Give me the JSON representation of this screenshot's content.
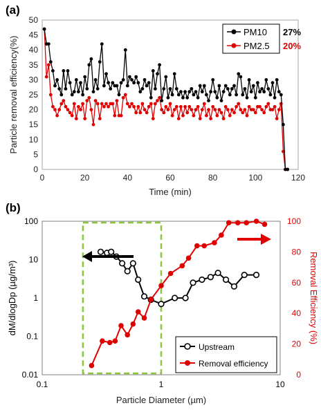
{
  "chart_data": [
    {
      "type": "line",
      "panel_label": "(a)",
      "title": "",
      "xlabel": "Time (min)",
      "ylabel": "Particle removal efficiency(%)",
      "xlim": [
        0,
        120
      ],
      "ylim": [
        0,
        50
      ],
      "xticks": [
        0,
        20,
        40,
        60,
        80,
        100,
        120
      ],
      "yticks": [
        0,
        5,
        10,
        15,
        20,
        25,
        30,
        35,
        40,
        45,
        50
      ],
      "legend_position": "top-right",
      "series": [
        {
          "name": "PM10",
          "color": "#000000",
          "summary": "27%",
          "x": [
            1,
            2,
            3,
            4,
            5,
            6,
            7,
            8,
            9,
            10,
            11,
            12,
            13,
            14,
            15,
            16,
            17,
            18,
            19,
            20,
            21,
            22,
            23,
            24,
            25,
            26,
            27,
            28,
            29,
            30,
            31,
            32,
            33,
            34,
            35,
            36,
            37,
            38,
            39,
            40,
            41,
            42,
            43,
            44,
            45,
            46,
            47,
            48,
            49,
            50,
            51,
            52,
            53,
            54,
            55,
            56,
            57,
            58,
            59,
            60,
            61,
            62,
            63,
            64,
            65,
            66,
            67,
            68,
            69,
            70,
            71,
            72,
            73,
            74,
            75,
            76,
            77,
            78,
            79,
            80,
            81,
            82,
            83,
            84,
            85,
            86,
            87,
            88,
            89,
            90,
            91,
            92,
            93,
            94,
            95,
            96,
            97,
            98,
            99,
            100,
            101,
            102,
            103,
            104,
            105,
            106,
            107,
            108,
            109,
            110,
            111,
            112,
            113,
            114,
            115
          ],
          "y": [
            47,
            42,
            42,
            36,
            33,
            28,
            30,
            27,
            25,
            33,
            27,
            33,
            29,
            25,
            26,
            30,
            26,
            29,
            25,
            31,
            27,
            35,
            37,
            26,
            30,
            27,
            36,
            42,
            28,
            32,
            29,
            27,
            29,
            28,
            28,
            25,
            29,
            30,
            40,
            28,
            31,
            30,
            29,
            31,
            29,
            26,
            27,
            30,
            28,
            29,
            24,
            33,
            27,
            32,
            35,
            23,
            27,
            31,
            24,
            27,
            25,
            32,
            27,
            25,
            26,
            24,
            26,
            24,
            26,
            27,
            25,
            26,
            24,
            28,
            26,
            28,
            25,
            23,
            26,
            30,
            26,
            24,
            28,
            23,
            26,
            28,
            27,
            25,
            27,
            28,
            25,
            32,
            31,
            25,
            27,
            24,
            30,
            26,
            28,
            24,
            29,
            26,
            27,
            26,
            30,
            27,
            25,
            29,
            24,
            30,
            26,
            25,
            15,
            0,
            0
          ]
        },
        {
          "name": "PM2.5",
          "color": "#e00000",
          "summary": "20%",
          "x": [
            1,
            2,
            3,
            4,
            5,
            6,
            7,
            8,
            9,
            10,
            11,
            12,
            13,
            14,
            15,
            16,
            17,
            18,
            19,
            20,
            21,
            22,
            23,
            24,
            25,
            26,
            27,
            28,
            29,
            30,
            31,
            32,
            33,
            34,
            35,
            36,
            37,
            38,
            39,
            40,
            41,
            42,
            43,
            44,
            45,
            46,
            47,
            48,
            49,
            50,
            51,
            52,
            53,
            54,
            55,
            56,
            57,
            58,
            59,
            60,
            61,
            62,
            63,
            64,
            65,
            66,
            67,
            68,
            69,
            70,
            71,
            72,
            73,
            74,
            75,
            76,
            77,
            78,
            79,
            80,
            81,
            82,
            83,
            84,
            85,
            86,
            87,
            88,
            89,
            90,
            91,
            92,
            93,
            94,
            95,
            96,
            97,
            98,
            99,
            100,
            101,
            102,
            103,
            104,
            105,
            106,
            107,
            108,
            109,
            110,
            111,
            112,
            113,
            114,
            115
          ],
          "y": [
            47,
            31,
            35,
            25,
            21,
            20,
            18,
            20,
            22,
            23,
            21,
            20,
            19,
            18,
            22,
            17,
            21,
            20,
            22,
            17,
            23,
            24,
            20,
            15,
            23,
            22,
            17,
            22,
            21,
            22,
            21,
            22,
            22,
            18,
            23,
            18,
            18,
            24,
            25,
            22,
            21,
            22,
            21,
            19,
            21,
            19,
            22,
            20,
            19,
            21,
            22,
            17,
            22,
            23,
            24,
            20,
            19,
            21,
            20,
            22,
            18,
            20,
            21,
            17,
            21,
            18,
            21,
            19,
            21,
            20,
            18,
            20,
            21,
            17,
            20,
            22,
            18,
            20,
            17,
            21,
            20,
            18,
            20,
            19,
            17,
            21,
            20,
            18,
            20,
            19,
            21,
            22,
            20,
            19,
            20,
            18,
            21,
            20,
            20,
            19,
            21,
            21,
            20,
            19,
            21,
            22,
            20,
            20,
            21,
            17,
            20,
            22,
            6,
            0,
            0
          ]
        }
      ]
    },
    {
      "type": "line",
      "panel_label": "(b)",
      "title": "",
      "xlabel": "Particle Diameter (µm)",
      "ylabel_left": "dM/dlogDp (µg/m³)",
      "ylabel_right": "Removal Efficiency (%)",
      "xscale": "log",
      "yscale_left": "log",
      "xlim": [
        0.1,
        10
      ],
      "ylim_left": [
        0.01,
        100
      ],
      "ylim_right": [
        0,
        100
      ],
      "xtick_labels": [
        "0.1",
        "1",
        "10"
      ],
      "ytick_labels_left": [
        "0.01",
        "0.1",
        "1",
        "10",
        "100"
      ],
      "ytick_labels_right": [
        "0",
        "20",
        "40",
        "60",
        "80",
        "100"
      ],
      "legend_position": "bottom-right",
      "highlight_region_x": [
        0.22,
        1.0
      ],
      "series": [
        {
          "name": "Upstream",
          "axis": "left",
          "color": "#000000",
          "marker": "hollow-circle",
          "x": [
            0.31,
            0.35,
            0.38,
            0.42,
            0.47,
            0.52,
            0.58,
            0.64,
            0.72,
            0.82,
            1.0,
            1.3,
            1.6,
            1.85,
            2.2,
            2.6,
            3.0,
            3.5,
            4.1,
            5.0,
            6.3
          ],
          "y": [
            16,
            15,
            16,
            12,
            8,
            5,
            8,
            3,
            1.1,
            0.9,
            0.7,
            1.0,
            1.0,
            2.5,
            3.0,
            3.5,
            4.5,
            3.0,
            2.0,
            4.0,
            4.0
          ]
        },
        {
          "name": "Removal efficiency",
          "axis": "right",
          "color": "#e00000",
          "marker": "filled-circle",
          "x": [
            0.26,
            0.32,
            0.37,
            0.41,
            0.46,
            0.52,
            0.58,
            0.64,
            0.72,
            0.82,
            1.0,
            1.2,
            1.5,
            1.7,
            2.0,
            2.3,
            2.8,
            3.2,
            3.7,
            4.4,
            5.2,
            6.3,
            7.4
          ],
          "y": [
            6,
            22,
            21,
            22,
            32,
            26,
            33,
            41,
            37,
            49,
            58,
            66,
            71,
            76,
            84,
            84,
            86,
            91,
            99,
            99,
            99,
            100,
            98
          ]
        }
      ]
    }
  ]
}
